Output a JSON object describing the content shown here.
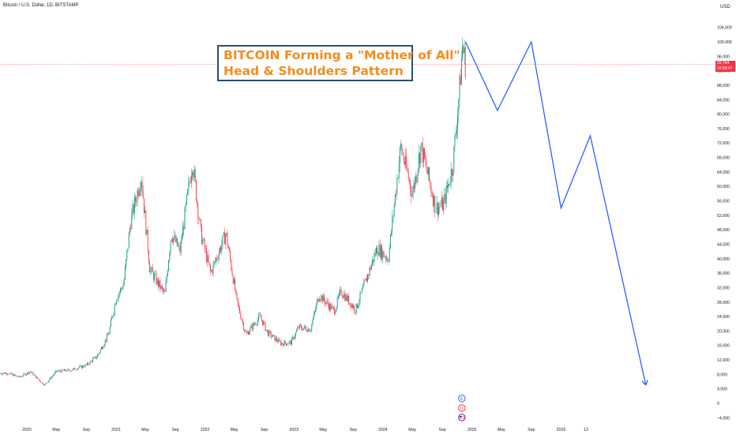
{
  "header": {
    "symbol": "Bitcoin / U.S. Dollar, 1D, BITSTAMP",
    "currency": "USD"
  },
  "annotation": {
    "line1": "BITCOIN Forming a \"Mother of All\"",
    "line2": "Head & Shoulders Pattern"
  },
  "current_price": {
    "value": "93,764",
    "countdown": "09:58:47"
  },
  "event_markers": [
    "earnings-icon",
    "dividend-icon",
    "us-flag-icon"
  ],
  "colors": {
    "up": "#089981",
    "down": "#f23645",
    "projection": "#2962ff",
    "annotation_text": "#f68b1e",
    "annotation_border": "#2a4f72"
  },
  "chart_data": {
    "type": "line",
    "title": "BITCOIN Forming a \"Mother of All\" Head & Shoulders Pattern",
    "xlabel": "",
    "ylabel": "",
    "ylim": [
      -4000,
      108000
    ],
    "grid": false,
    "y_ticks": [
      -4000,
      0,
      4000,
      8000,
      12000,
      16000,
      20000,
      24000,
      28000,
      32000,
      36000,
      40000,
      44000,
      48000,
      52000,
      56000,
      60000,
      64000,
      68000,
      72000,
      76000,
      80000,
      84000,
      88000,
      92000,
      96000,
      100000,
      104000
    ],
    "x_ticks": [
      {
        "label": "2020",
        "date": "2020-01-01"
      },
      {
        "label": "May",
        "date": "2020-05-01"
      },
      {
        "label": "Sep",
        "date": "2020-09-01"
      },
      {
        "label": "2021",
        "date": "2021-01-01"
      },
      {
        "label": "May",
        "date": "2021-05-01"
      },
      {
        "label": "Sep",
        "date": "2021-09-01"
      },
      {
        "label": "2022",
        "date": "2022-01-01"
      },
      {
        "label": "May",
        "date": "2022-05-01"
      },
      {
        "label": "Sep",
        "date": "2022-09-01"
      },
      {
        "label": "2023",
        "date": "2023-01-01"
      },
      {
        "label": "May",
        "date": "2023-05-01"
      },
      {
        "label": "Sep",
        "date": "2023-09-01"
      },
      {
        "label": "2024",
        "date": "2024-01-01"
      },
      {
        "label": "May",
        "date": "2024-05-01"
      },
      {
        "label": "Sep",
        "date": "2024-09-01"
      },
      {
        "label": "2025",
        "date": "2025-01-01"
      },
      {
        "label": "May",
        "date": "2025-05-01"
      },
      {
        "label": "Sep",
        "date": "2025-09-01"
      },
      {
        "label": "2026",
        "date": "2026-01-01"
      },
      {
        "label": "13",
        "date": "2026-04-13"
      }
    ],
    "price_series": {
      "x": [
        "2019-10-15",
        "2019-12-01",
        "2020-01-15",
        "2020-03-13",
        "2020-05-01",
        "2020-07-01",
        "2020-09-01",
        "2020-10-15",
        "2020-12-01",
        "2021-01-01",
        "2021-02-01",
        "2021-03-01",
        "2021-04-14",
        "2021-05-20",
        "2021-07-20",
        "2021-08-15",
        "2021-09-20",
        "2021-11-10",
        "2021-12-15",
        "2022-01-24",
        "2022-03-28",
        "2022-05-12",
        "2022-06-18",
        "2022-08-15",
        "2022-09-15",
        "2022-11-10",
        "2022-12-20",
        "2023-01-20",
        "2023-03-10",
        "2023-04-14",
        "2023-06-15",
        "2023-07-13",
        "2023-09-11",
        "2023-10-24",
        "2023-12-08",
        "2024-01-23",
        "2024-02-28",
        "2024-03-14",
        "2024-05-01",
        "2024-06-05",
        "2024-08-05",
        "2024-09-06",
        "2024-10-14",
        "2024-11-12",
        "2024-11-22",
        "2024-12-05"
      ],
      "close": [
        8300,
        7200,
        8800,
        5000,
        8800,
        9200,
        10500,
        13000,
        19000,
        29000,
        33000,
        50000,
        63000,
        37000,
        30000,
        47000,
        42000,
        67000,
        47000,
        36000,
        47000,
        28000,
        19000,
        24000,
        19500,
        16500,
        16800,
        21000,
        20500,
        30000,
        25500,
        31000,
        25900,
        34000,
        43000,
        40000,
        62000,
        71000,
        58000,
        71000,
        54000,
        55000,
        66000,
        88000,
        99000,
        93764
      ]
    },
    "projection_series": {
      "x": [
        "2024-12-05",
        "2025-04-15",
        "2025-09-01",
        "2026-01-01",
        "2026-05-01",
        "2026-12-15"
      ],
      "y": [
        100000,
        81000,
        100000,
        54000,
        74000,
        5000
      ]
    },
    "current_price": 93764
  }
}
